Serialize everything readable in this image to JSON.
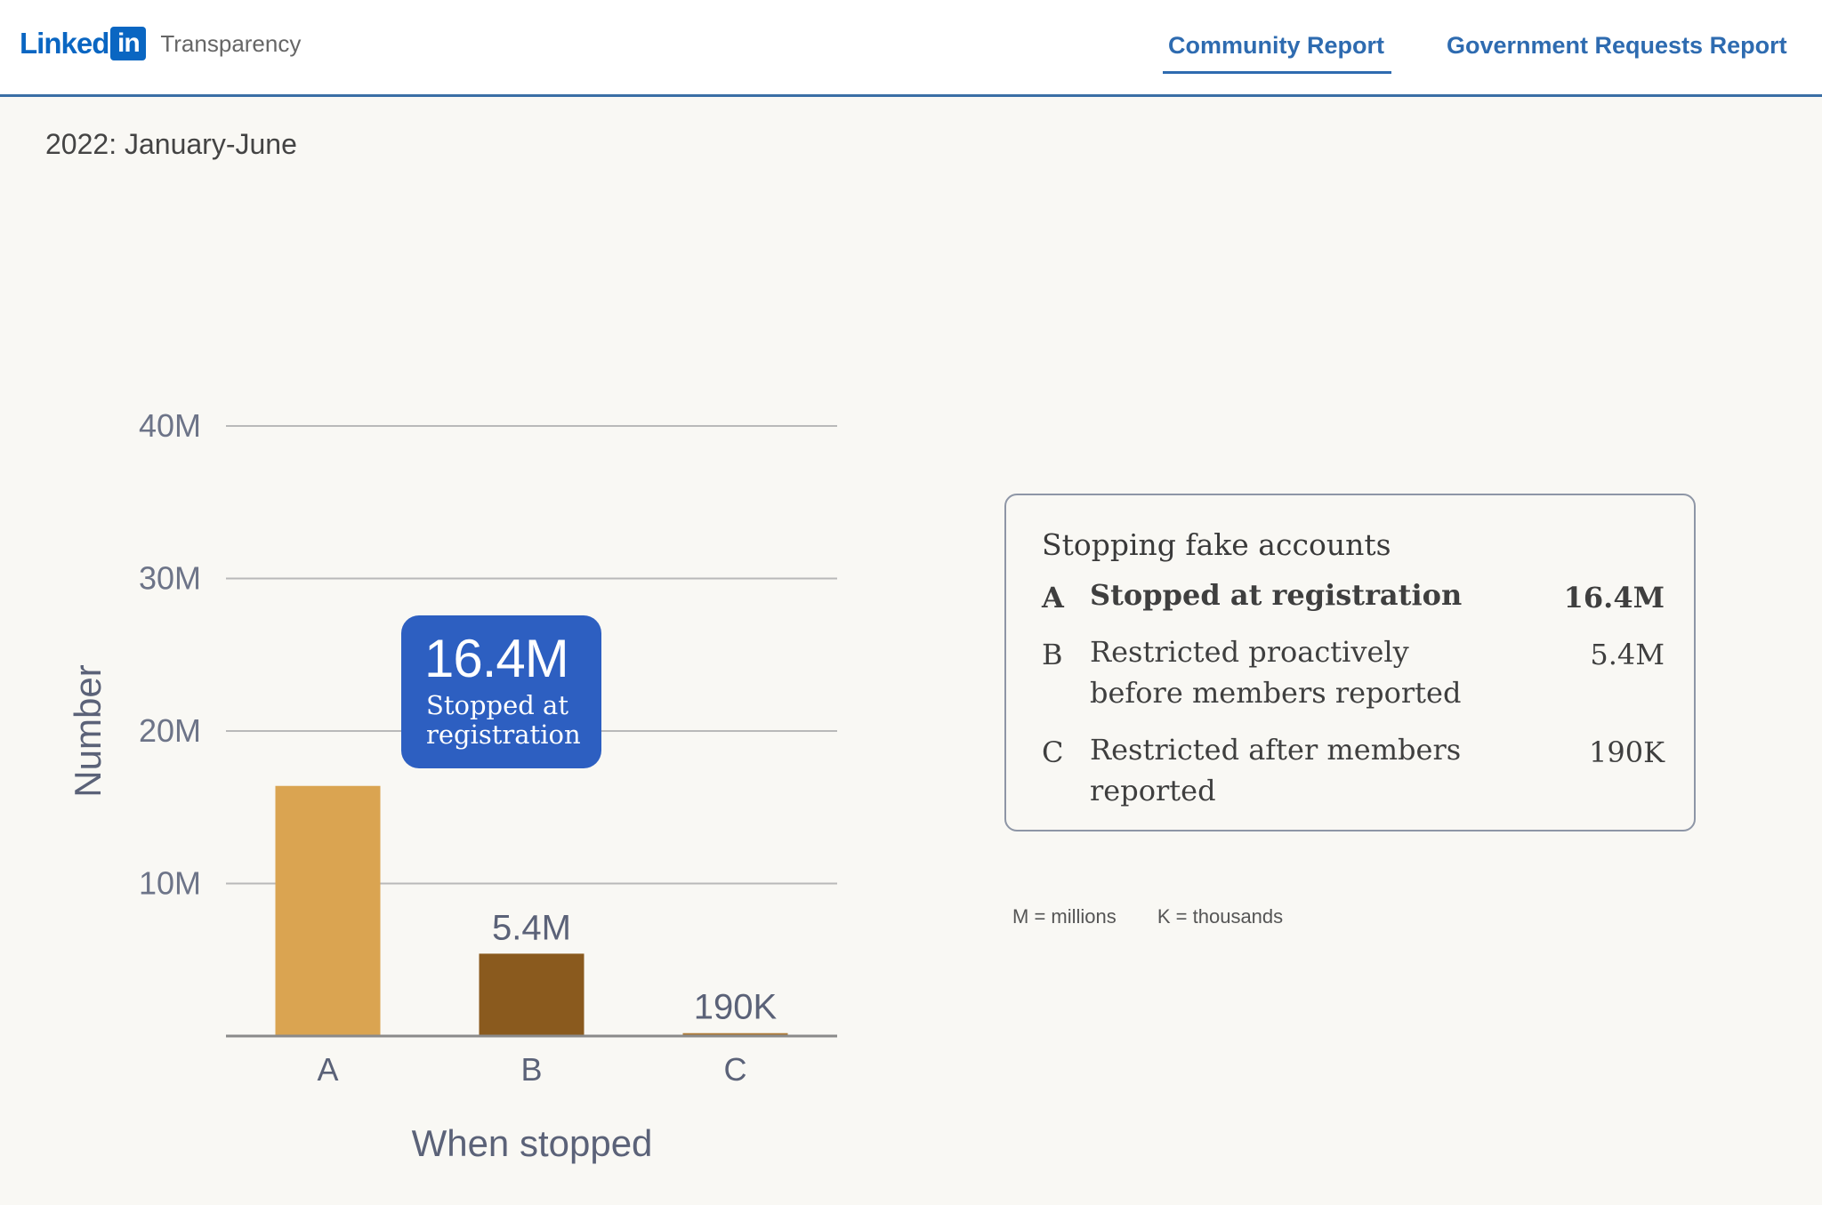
{
  "header": {
    "logo_word": "Linked",
    "logo_box": "in",
    "logo_suffix": "Transparency",
    "tabs": [
      {
        "label": "Community Report",
        "active": true
      },
      {
        "label": "Government Requests Report",
        "active": false
      }
    ]
  },
  "period": "2022: January-June",
  "chart_data": {
    "type": "bar",
    "categories": [
      "A",
      "B",
      "C"
    ],
    "values": [
      16400000,
      5400000,
      190000
    ],
    "data_labels": [
      "",
      "5.4M",
      "190K"
    ],
    "colors": [
      "#daa451",
      "#8a5a1e",
      "#b07a35"
    ],
    "xlabel": "When stopped",
    "ylabel": "Number",
    "ylim": [
      0,
      40000000
    ],
    "yticks": [
      10000000,
      20000000,
      30000000,
      40000000
    ],
    "ytick_labels": [
      "10M",
      "20M",
      "30M",
      "40M"
    ],
    "grid": true,
    "tooltip": {
      "category": "A",
      "value": "16.4M",
      "description": "Stopped at registration"
    }
  },
  "legend": {
    "title": "Stopping fake accounts",
    "rows": [
      {
        "letter": "A",
        "label": "Stopped at registration",
        "value": "16.4M"
      },
      {
        "letter": "B",
        "label": "Restricted proactively before members reported",
        "value": "5.4M"
      },
      {
        "letter": "C",
        "label": "Restricted after members reported",
        "value": "190K"
      }
    ]
  },
  "notes": [
    "M = millions",
    "K = thousands"
  ],
  "colors": {
    "accent": "#2e6bb0",
    "tooltip": "#2d5fc1",
    "background": "#f9f8f4"
  }
}
